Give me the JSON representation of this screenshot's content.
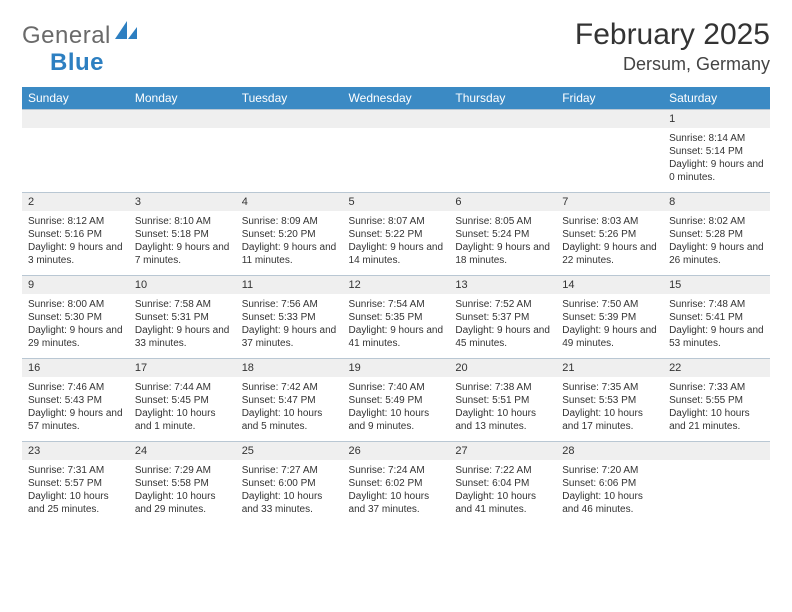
{
  "brand": {
    "part1": "General",
    "part2": "Blue",
    "icon_color": "#2d7fc1"
  },
  "title": "February 2025",
  "location": "Dersum, Germany",
  "header_bg": "#3b8ac4",
  "header_fg": "#ffffff",
  "daynum_bg": "#efefef",
  "border_color": "#b9c7d3",
  "text_color": "#333333",
  "day_names": [
    "Sunday",
    "Monday",
    "Tuesday",
    "Wednesday",
    "Thursday",
    "Friday",
    "Saturday"
  ],
  "weeks": [
    [
      null,
      null,
      null,
      null,
      null,
      null,
      {
        "n": "1",
        "sr": "8:14 AM",
        "ss": "5:14 PM",
        "dl": "9 hours and 0 minutes."
      }
    ],
    [
      {
        "n": "2",
        "sr": "8:12 AM",
        "ss": "5:16 PM",
        "dl": "9 hours and 3 minutes."
      },
      {
        "n": "3",
        "sr": "8:10 AM",
        "ss": "5:18 PM",
        "dl": "9 hours and 7 minutes."
      },
      {
        "n": "4",
        "sr": "8:09 AM",
        "ss": "5:20 PM",
        "dl": "9 hours and 11 minutes."
      },
      {
        "n": "5",
        "sr": "8:07 AM",
        "ss": "5:22 PM",
        "dl": "9 hours and 14 minutes."
      },
      {
        "n": "6",
        "sr": "8:05 AM",
        "ss": "5:24 PM",
        "dl": "9 hours and 18 minutes."
      },
      {
        "n": "7",
        "sr": "8:03 AM",
        "ss": "5:26 PM",
        "dl": "9 hours and 22 minutes."
      },
      {
        "n": "8",
        "sr": "8:02 AM",
        "ss": "5:28 PM",
        "dl": "9 hours and 26 minutes."
      }
    ],
    [
      {
        "n": "9",
        "sr": "8:00 AM",
        "ss": "5:30 PM",
        "dl": "9 hours and 29 minutes."
      },
      {
        "n": "10",
        "sr": "7:58 AM",
        "ss": "5:31 PM",
        "dl": "9 hours and 33 minutes."
      },
      {
        "n": "11",
        "sr": "7:56 AM",
        "ss": "5:33 PM",
        "dl": "9 hours and 37 minutes."
      },
      {
        "n": "12",
        "sr": "7:54 AM",
        "ss": "5:35 PM",
        "dl": "9 hours and 41 minutes."
      },
      {
        "n": "13",
        "sr": "7:52 AM",
        "ss": "5:37 PM",
        "dl": "9 hours and 45 minutes."
      },
      {
        "n": "14",
        "sr": "7:50 AM",
        "ss": "5:39 PM",
        "dl": "9 hours and 49 minutes."
      },
      {
        "n": "15",
        "sr": "7:48 AM",
        "ss": "5:41 PM",
        "dl": "9 hours and 53 minutes."
      }
    ],
    [
      {
        "n": "16",
        "sr": "7:46 AM",
        "ss": "5:43 PM",
        "dl": "9 hours and 57 minutes."
      },
      {
        "n": "17",
        "sr": "7:44 AM",
        "ss": "5:45 PM",
        "dl": "10 hours and 1 minute."
      },
      {
        "n": "18",
        "sr": "7:42 AM",
        "ss": "5:47 PM",
        "dl": "10 hours and 5 minutes."
      },
      {
        "n": "19",
        "sr": "7:40 AM",
        "ss": "5:49 PM",
        "dl": "10 hours and 9 minutes."
      },
      {
        "n": "20",
        "sr": "7:38 AM",
        "ss": "5:51 PM",
        "dl": "10 hours and 13 minutes."
      },
      {
        "n": "21",
        "sr": "7:35 AM",
        "ss": "5:53 PM",
        "dl": "10 hours and 17 minutes."
      },
      {
        "n": "22",
        "sr": "7:33 AM",
        "ss": "5:55 PM",
        "dl": "10 hours and 21 minutes."
      }
    ],
    [
      {
        "n": "23",
        "sr": "7:31 AM",
        "ss": "5:57 PM",
        "dl": "10 hours and 25 minutes."
      },
      {
        "n": "24",
        "sr": "7:29 AM",
        "ss": "5:58 PM",
        "dl": "10 hours and 29 minutes."
      },
      {
        "n": "25",
        "sr": "7:27 AM",
        "ss": "6:00 PM",
        "dl": "10 hours and 33 minutes."
      },
      {
        "n": "26",
        "sr": "7:24 AM",
        "ss": "6:02 PM",
        "dl": "10 hours and 37 minutes."
      },
      {
        "n": "27",
        "sr": "7:22 AM",
        "ss": "6:04 PM",
        "dl": "10 hours and 41 minutes."
      },
      {
        "n": "28",
        "sr": "7:20 AM",
        "ss": "6:06 PM",
        "dl": "10 hours and 46 minutes."
      },
      null
    ]
  ],
  "labels": {
    "sunrise": "Sunrise: ",
    "sunset": "Sunset: ",
    "daylight": "Daylight: "
  }
}
